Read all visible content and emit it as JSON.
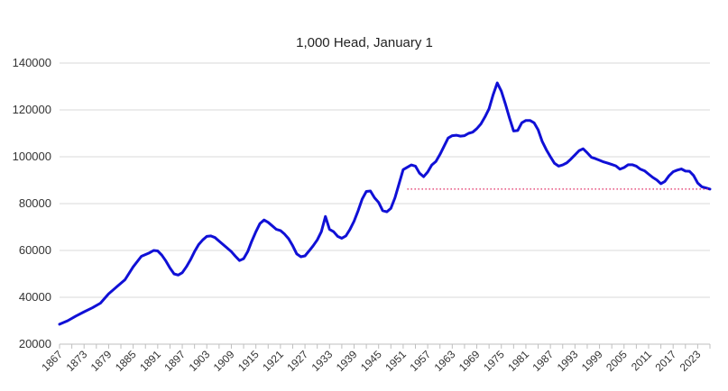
{
  "chart_data": {
    "type": "line",
    "title": "1,000 Head, January 1",
    "xlabel": "",
    "ylabel": "",
    "x_range": [
      1867,
      2026
    ],
    "ylim": [
      20000,
      140000
    ],
    "y_ticks": [
      20000,
      40000,
      60000,
      80000,
      100000,
      120000,
      140000
    ],
    "x_ticks": [
      1867,
      1873,
      1879,
      1885,
      1891,
      1897,
      1903,
      1909,
      1915,
      1921,
      1927,
      1933,
      1939,
      1945,
      1951,
      1957,
      1963,
      1969,
      1975,
      1981,
      1987,
      1993,
      1999,
      2005,
      2011,
      2017,
      2023
    ],
    "grid": "horizontal",
    "legend": "none",
    "series": [
      {
        "color": "#1010d6",
        "points": [
          [
            1867,
            28500
          ],
          [
            1869,
            30000
          ],
          [
            1871,
            32000
          ],
          [
            1873,
            33800
          ],
          [
            1875,
            35500
          ],
          [
            1877,
            37500
          ],
          [
            1879,
            41500
          ],
          [
            1881,
            44500
          ],
          [
            1883,
            47500
          ],
          [
            1885,
            53000
          ],
          [
            1887,
            57500
          ],
          [
            1889,
            59000
          ],
          [
            1890,
            60000
          ],
          [
            1891,
            59800
          ],
          [
            1892,
            58000
          ],
          [
            1893,
            55500
          ],
          [
            1894,
            52500
          ],
          [
            1895,
            50000
          ],
          [
            1896,
            49500
          ],
          [
            1897,
            50500
          ],
          [
            1898,
            53000
          ],
          [
            1899,
            56000
          ],
          [
            1900,
            59500
          ],
          [
            1901,
            62500
          ],
          [
            1902,
            64500
          ],
          [
            1903,
            66000
          ],
          [
            1904,
            66200
          ],
          [
            1905,
            65500
          ],
          [
            1906,
            64000
          ],
          [
            1907,
            62500
          ],
          [
            1908,
            61000
          ],
          [
            1909,
            59500
          ],
          [
            1910,
            57500
          ],
          [
            1911,
            55700
          ],
          [
            1912,
            56500
          ],
          [
            1913,
            59500
          ],
          [
            1914,
            64000
          ],
          [
            1915,
            68000
          ],
          [
            1916,
            71500
          ],
          [
            1917,
            73000
          ],
          [
            1918,
            72000
          ],
          [
            1919,
            70500
          ],
          [
            1920,
            69000
          ],
          [
            1921,
            68500
          ],
          [
            1922,
            67000
          ],
          [
            1923,
            65000
          ],
          [
            1924,
            62000
          ],
          [
            1925,
            58500
          ],
          [
            1926,
            57300
          ],
          [
            1927,
            57700
          ],
          [
            1928,
            59800
          ],
          [
            1929,
            62000
          ],
          [
            1930,
            64500
          ],
          [
            1931,
            68000
          ],
          [
            1932,
            74500
          ],
          [
            1933,
            69000
          ],
          [
            1934,
            68000
          ],
          [
            1935,
            66000
          ],
          [
            1936,
            65200
          ],
          [
            1937,
            66200
          ],
          [
            1938,
            69000
          ],
          [
            1939,
            72500
          ],
          [
            1940,
            77000
          ],
          [
            1941,
            82000
          ],
          [
            1942,
            85200
          ],
          [
            1943,
            85400
          ],
          [
            1944,
            82500
          ],
          [
            1945,
            80500
          ],
          [
            1946,
            77000
          ],
          [
            1947,
            76500
          ],
          [
            1948,
            78000
          ],
          [
            1949,
            82500
          ],
          [
            1950,
            88500
          ],
          [
            1951,
            94500
          ],
          [
            1952,
            95500
          ],
          [
            1953,
            96500
          ],
          [
            1954,
            96000
          ],
          [
            1955,
            93000
          ],
          [
            1956,
            91500
          ],
          [
            1957,
            93500
          ],
          [
            1958,
            96500
          ],
          [
            1959,
            98000
          ],
          [
            1960,
            101000
          ],
          [
            1961,
            104500
          ],
          [
            1962,
            108000
          ],
          [
            1963,
            109000
          ],
          [
            1964,
            109200
          ],
          [
            1965,
            108800
          ],
          [
            1966,
            109000
          ],
          [
            1967,
            110000
          ],
          [
            1968,
            110500
          ],
          [
            1969,
            112000
          ],
          [
            1970,
            114000
          ],
          [
            1971,
            117000
          ],
          [
            1972,
            120500
          ],
          [
            1973,
            126500
          ],
          [
            1974,
            131500
          ],
          [
            1975,
            128000
          ],
          [
            1976,
            122500
          ],
          [
            1977,
            116500
          ],
          [
            1978,
            111000
          ],
          [
            1979,
            111200
          ],
          [
            1980,
            114500
          ],
          [
            1981,
            115500
          ],
          [
            1982,
            115500
          ],
          [
            1983,
            114500
          ],
          [
            1984,
            111500
          ],
          [
            1985,
            106500
          ],
          [
            1986,
            103000
          ],
          [
            1987,
            100000
          ],
          [
            1988,
            97200
          ],
          [
            1989,
            96000
          ],
          [
            1990,
            96500
          ],
          [
            1991,
            97400
          ],
          [
            1992,
            99000
          ],
          [
            1993,
            100800
          ],
          [
            1994,
            102600
          ],
          [
            1995,
            103400
          ],
          [
            1996,
            101700
          ],
          [
            1997,
            99800
          ],
          [
            1998,
            99200
          ],
          [
            1999,
            98500
          ],
          [
            2000,
            97800
          ],
          [
            2001,
            97300
          ],
          [
            2002,
            96700
          ],
          [
            2003,
            96100
          ],
          [
            2004,
            94700
          ],
          [
            2005,
            95400
          ],
          [
            2006,
            96600
          ],
          [
            2007,
            96600
          ],
          [
            2008,
            96000
          ],
          [
            2009,
            94700
          ],
          [
            2010,
            94000
          ],
          [
            2011,
            92600
          ],
          [
            2012,
            91200
          ],
          [
            2013,
            90100
          ],
          [
            2014,
            88500
          ],
          [
            2015,
            89500
          ],
          [
            2016,
            91900
          ],
          [
            2017,
            93600
          ],
          [
            2018,
            94300
          ],
          [
            2019,
            94800
          ],
          [
            2020,
            93900
          ],
          [
            2021,
            93800
          ],
          [
            2022,
            92000
          ],
          [
            2023,
            88800
          ],
          [
            2024,
            87200
          ],
          [
            2025,
            86700
          ],
          [
            2026,
            86200
          ]
        ]
      }
    ],
    "reference_line": {
      "value": 86200,
      "x_start": 1952,
      "x_end": 2026,
      "style": "dotted",
      "color": "#e0245e"
    }
  }
}
